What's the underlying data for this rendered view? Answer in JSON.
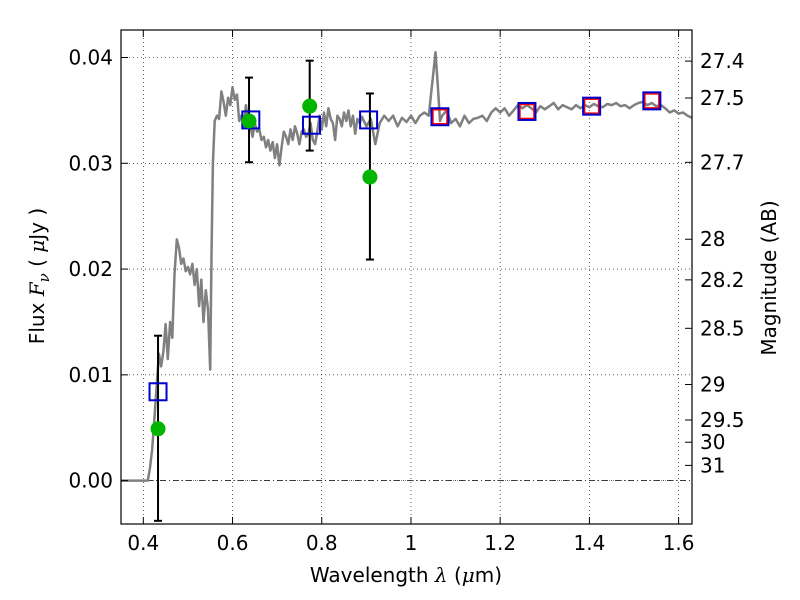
{
  "chart_data": {
    "type": "scatter",
    "title": "",
    "xlabel": {
      "prefix": "Wavelength  ",
      "symbol": "λ",
      "unit_open": " (",
      "unit_mu": "μ",
      "unit_rest": "m)"
    },
    "ylabel": {
      "prefix": "Flux  ",
      "symbol": "F",
      "subscript": "ν",
      "unit_open": "  ( ",
      "unit_mu": "μ",
      "unit_rest": "Jy )"
    },
    "y2label": "Magnitude (AB)",
    "xlim": [
      0.35,
      1.63
    ],
    "ylim": [
      -0.0041,
      0.0426
    ],
    "grid": true,
    "x_ticks": [
      {
        "value": 0.4,
        "label": "0.4"
      },
      {
        "value": 0.6,
        "label": "0.6"
      },
      {
        "value": 0.8,
        "label": "0.8"
      },
      {
        "value": 1.0,
        "label": "1"
      },
      {
        "value": 1.2,
        "label": "1.2"
      },
      {
        "value": 1.4,
        "label": "1.4"
      },
      {
        "value": 1.6,
        "label": "1.6"
      }
    ],
    "y_ticks": [
      {
        "value": 0.0,
        "label": "0.00"
      },
      {
        "value": 0.01,
        "label": "0.01"
      },
      {
        "value": 0.02,
        "label": "0.02"
      },
      {
        "value": 0.03,
        "label": "0.03"
      },
      {
        "value": 0.04,
        "label": "0.04"
      }
    ],
    "y2_ticks": [
      {
        "label": "27.4",
        "flux": 0.03966
      },
      {
        "label": "27.5",
        "flux": 0.03617
      },
      {
        "label": "27.7",
        "flux": 0.03009
      },
      {
        "label": "28",
        "flux": 0.02282
      },
      {
        "label": "28.2",
        "flux": 0.01898
      },
      {
        "label": "28.5",
        "flux": 0.0144
      },
      {
        "label": "29",
        "flux": 0.00909
      },
      {
        "label": "29.5",
        "flux": 0.00573
      },
      {
        "label": "30",
        "flux": 0.00363
      },
      {
        "label": "31",
        "flux": 0.00144
      }
    ],
    "model_spectrum": {
      "color": "#808080",
      "points": [
        [
          0.35,
          0.0
        ],
        [
          0.41,
          0.0
        ],
        [
          0.415,
          0.0012
        ],
        [
          0.42,
          0.003
        ],
        [
          0.425,
          0.006
        ],
        [
          0.43,
          0.009
        ],
        [
          0.435,
          0.012
        ],
        [
          0.44,
          0.0108
        ],
        [
          0.445,
          0.0122
        ],
        [
          0.45,
          0.0148
        ],
        [
          0.455,
          0.0115
        ],
        [
          0.46,
          0.015
        ],
        [
          0.465,
          0.0135
        ],
        [
          0.47,
          0.0195
        ],
        [
          0.475,
          0.0228
        ],
        [
          0.48,
          0.022
        ],
        [
          0.485,
          0.0205
        ],
        [
          0.49,
          0.021
        ],
        [
          0.495,
          0.0198
        ],
        [
          0.5,
          0.0202
        ],
        [
          0.505,
          0.0195
        ],
        [
          0.51,
          0.0205
        ],
        [
          0.515,
          0.0185
        ],
        [
          0.52,
          0.02
        ],
        [
          0.525,
          0.0165
        ],
        [
          0.53,
          0.019
        ],
        [
          0.535,
          0.015
        ],
        [
          0.54,
          0.018
        ],
        [
          0.545,
          0.0162
        ],
        [
          0.55,
          0.0105
        ],
        [
          0.553,
          0.022
        ],
        [
          0.556,
          0.03
        ],
        [
          0.56,
          0.034
        ],
        [
          0.565,
          0.0345
        ],
        [
          0.57,
          0.0342
        ],
        [
          0.575,
          0.0368
        ],
        [
          0.58,
          0.0358
        ],
        [
          0.585,
          0.0345
        ],
        [
          0.59,
          0.0362
        ],
        [
          0.595,
          0.0355
        ],
        [
          0.6,
          0.0372
        ],
        [
          0.605,
          0.036
        ],
        [
          0.61,
          0.0365
        ],
        [
          0.615,
          0.034
        ],
        [
          0.62,
          0.0345
        ],
        [
          0.625,
          0.0335
        ],
        [
          0.63,
          0.0355
        ],
        [
          0.635,
          0.034
        ],
        [
          0.64,
          0.0335
        ],
        [
          0.645,
          0.0325
        ],
        [
          0.65,
          0.0338
        ],
        [
          0.655,
          0.033
        ],
        [
          0.66,
          0.0332
        ],
        [
          0.665,
          0.0322
        ],
        [
          0.67,
          0.0325
        ],
        [
          0.675,
          0.0315
        ],
        [
          0.68,
          0.0322
        ],
        [
          0.685,
          0.0312
        ],
        [
          0.69,
          0.032
        ],
        [
          0.695,
          0.0305
        ],
        [
          0.7,
          0.0318
        ],
        [
          0.705,
          0.0298
        ],
        [
          0.71,
          0.0315
        ],
        [
          0.715,
          0.033
        ],
        [
          0.72,
          0.0325
        ],
        [
          0.725,
          0.0318
        ],
        [
          0.73,
          0.0332
        ],
        [
          0.735,
          0.0322
        ],
        [
          0.74,
          0.0335
        ],
        [
          0.745,
          0.0328
        ],
        [
          0.75,
          0.0318
        ],
        [
          0.755,
          0.033
        ],
        [
          0.76,
          0.0332
        ],
        [
          0.765,
          0.0325
        ],
        [
          0.77,
          0.0328
        ],
        [
          0.775,
          0.0338
        ],
        [
          0.78,
          0.0322
        ],
        [
          0.785,
          0.0318
        ],
        [
          0.79,
          0.033
        ],
        [
          0.795,
          0.0345
        ],
        [
          0.8,
          0.0332
        ],
        [
          0.805,
          0.0348
        ],
        [
          0.81,
          0.0335
        ],
        [
          0.815,
          0.0352
        ],
        [
          0.82,
          0.0342
        ],
        [
          0.825,
          0.0338
        ],
        [
          0.83,
          0.0322
        ],
        [
          0.835,
          0.0345
        ],
        [
          0.84,
          0.0342
        ],
        [
          0.845,
          0.0335
        ],
        [
          0.85,
          0.0348
        ],
        [
          0.855,
          0.034
        ],
        [
          0.86,
          0.035
        ],
        [
          0.865,
          0.0335
        ],
        [
          0.87,
          0.0345
        ],
        [
          0.875,
          0.0328
        ],
        [
          0.88,
          0.0342
        ],
        [
          0.885,
          0.0338
        ],
        [
          0.89,
          0.0344
        ],
        [
          0.9,
          0.0335
        ],
        [
          0.91,
          0.0342
        ],
        [
          0.92,
          0.0318
        ],
        [
          0.93,
          0.0338
        ],
        [
          0.94,
          0.0345
        ],
        [
          0.95,
          0.034
        ],
        [
          0.96,
          0.0345
        ],
        [
          0.97,
          0.0335
        ],
        [
          0.98,
          0.0343
        ],
        [
          0.99,
          0.0339
        ],
        [
          1.0,
          0.0345
        ],
        [
          1.01,
          0.0338
        ],
        [
          1.02,
          0.0345
        ],
        [
          1.03,
          0.0348
        ],
        [
          1.04,
          0.0345
        ],
        [
          1.045,
          0.0365
        ],
        [
          1.05,
          0.0385
        ],
        [
          1.055,
          0.0405
        ],
        [
          1.06,
          0.0375
        ],
        [
          1.065,
          0.034
        ],
        [
          1.07,
          0.0345
        ],
        [
          1.08,
          0.035
        ],
        [
          1.09,
          0.0338
        ],
        [
          1.1,
          0.0342
        ],
        [
          1.11,
          0.0335
        ],
        [
          1.12,
          0.0345
        ],
        [
          1.13,
          0.0338
        ],
        [
          1.14,
          0.0342
        ],
        [
          1.15,
          0.0343
        ],
        [
          1.16,
          0.0345
        ],
        [
          1.17,
          0.034
        ],
        [
          1.18,
          0.0348
        ],
        [
          1.19,
          0.0352
        ],
        [
          1.2,
          0.0348
        ],
        [
          1.21,
          0.0352
        ],
        [
          1.22,
          0.0345
        ],
        [
          1.23,
          0.035
        ],
        [
          1.24,
          0.0355
        ],
        [
          1.25,
          0.0352
        ],
        [
          1.26,
          0.0355
        ],
        [
          1.27,
          0.0352
        ],
        [
          1.28,
          0.0348
        ],
        [
          1.29,
          0.0354
        ],
        [
          1.3,
          0.0351
        ],
        [
          1.31,
          0.0354
        ],
        [
          1.32,
          0.0357
        ],
        [
          1.33,
          0.0351
        ],
        [
          1.34,
          0.0355
        ],
        [
          1.35,
          0.0353
        ],
        [
          1.36,
          0.0351
        ],
        [
          1.37,
          0.0355
        ],
        [
          1.38,
          0.0352
        ],
        [
          1.39,
          0.0355
        ],
        [
          1.4,
          0.0353
        ],
        [
          1.41,
          0.0356
        ],
        [
          1.42,
          0.0354
        ],
        [
          1.43,
          0.0353
        ],
        [
          1.44,
          0.0356
        ],
        [
          1.45,
          0.0355
        ],
        [
          1.46,
          0.0357
        ],
        [
          1.47,
          0.0354
        ],
        [
          1.48,
          0.0355
        ],
        [
          1.49,
          0.0352
        ],
        [
          1.5,
          0.0355
        ],
        [
          1.51,
          0.0357
        ],
        [
          1.52,
          0.0358
        ],
        [
          1.53,
          0.0355
        ],
        [
          1.54,
          0.0357
        ],
        [
          1.55,
          0.0354
        ],
        [
          1.56,
          0.0355
        ],
        [
          1.57,
          0.0352
        ],
        [
          1.58,
          0.0348
        ],
        [
          1.59,
          0.035
        ],
        [
          1.6,
          0.0347
        ],
        [
          1.61,
          0.0348
        ],
        [
          1.62,
          0.0345
        ],
        [
          1.63,
          0.0343
        ]
      ]
    },
    "observed": {
      "color": "#00b400",
      "points": [
        {
          "x": 0.433,
          "y": 0.0049,
          "err_lo": 0.0087,
          "err_hi": 0.0088
        },
        {
          "x": 0.637,
          "y": 0.034,
          "err_lo": 0.0039,
          "err_hi": 0.0041
        },
        {
          "x": 0.773,
          "y": 0.0354,
          "err_lo": 0.0042,
          "err_hi": 0.0043
        },
        {
          "x": 0.908,
          "y": 0.0287,
          "err_lo": 0.0078,
          "err_hi": 0.0079
        }
      ]
    },
    "model_bandpass_blue": {
      "color": "#0000cc",
      "points": [
        {
          "x": 0.433,
          "y": 0.0084
        },
        {
          "x": 0.641,
          "y": 0.0341
        },
        {
          "x": 0.777,
          "y": 0.0336
        },
        {
          "x": 0.905,
          "y": 0.0341
        },
        {
          "x": 1.065,
          "y": 0.0344
        },
        {
          "x": 1.26,
          "y": 0.0349
        },
        {
          "x": 1.405,
          "y": 0.0354
        },
        {
          "x": 1.54,
          "y": 0.0359
        }
      ]
    },
    "model_bandpass_red": {
      "color": "#ff0000",
      "points": [
        {
          "x": 1.065,
          "y": 0.0344
        },
        {
          "x": 1.26,
          "y": 0.0349
        },
        {
          "x": 1.405,
          "y": 0.0354
        },
        {
          "x": 1.54,
          "y": 0.0359
        }
      ]
    }
  }
}
